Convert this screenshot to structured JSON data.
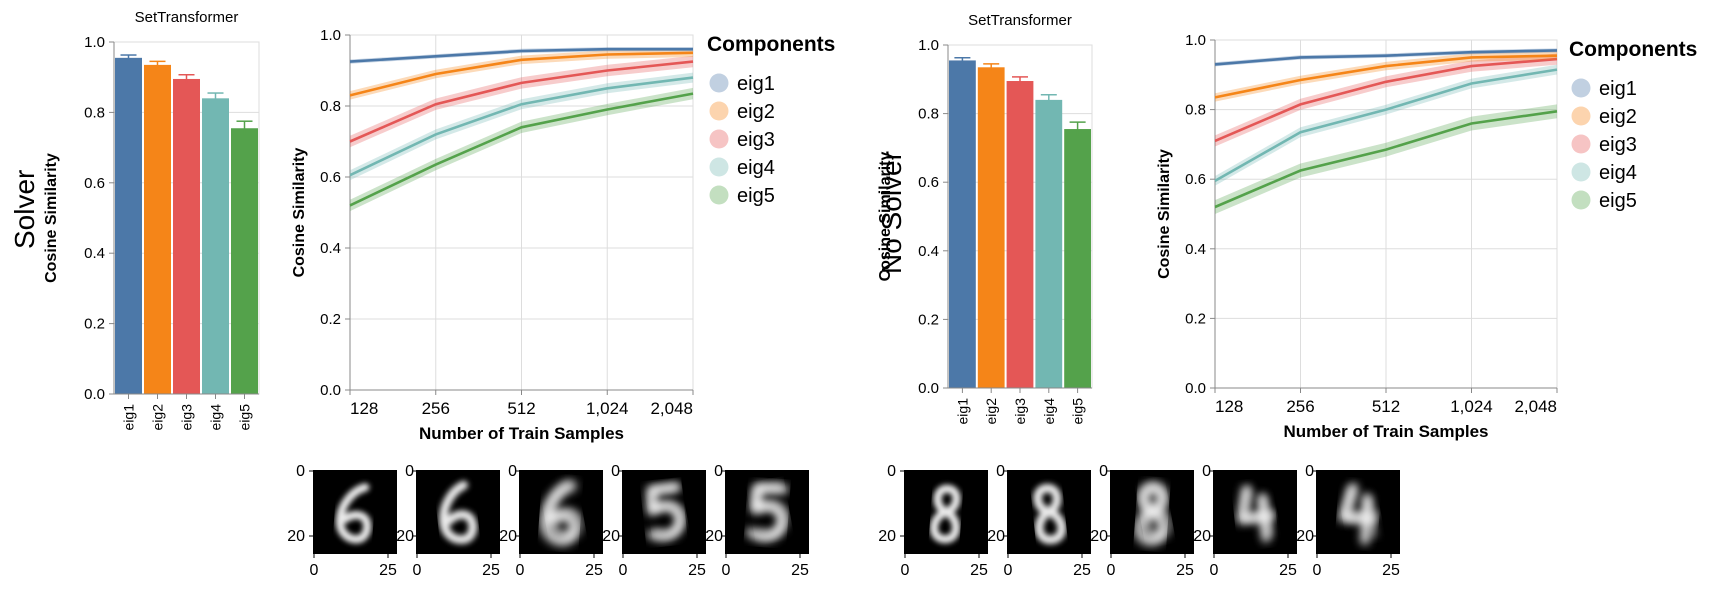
{
  "colors": {
    "eig1": "#4c78a8",
    "eig2": "#f58518",
    "eig3": "#e45756",
    "eig4": "#72b7b2",
    "eig5": "#54a24b",
    "grid": "#dddddd",
    "axis": "#888888"
  },
  "panels": [
    {
      "row_label": "Solver",
      "digits": [
        6,
        6,
        6,
        5,
        5
      ],
      "image_axis": {
        "y_ticks": [
          "0",
          "20"
        ],
        "x_ticks": [
          "0",
          "25"
        ]
      },
      "legend": {
        "title": "Components",
        "items": [
          "eig1",
          "eig2",
          "eig3",
          "eig4",
          "eig5"
        ]
      }
    },
    {
      "row_label": "No Solver",
      "digits": [
        8,
        8,
        8,
        4,
        4
      ],
      "image_axis": {
        "y_ticks": [
          "0",
          "20"
        ],
        "x_ticks": [
          "0",
          "25"
        ]
      },
      "legend": {
        "title": "Components",
        "items": [
          "eig1",
          "eig2",
          "eig3",
          "eig4",
          "eig5"
        ]
      }
    }
  ],
  "chart_data": [
    {
      "type": "bar",
      "title": "SetTransformer",
      "xlabel": "",
      "ylabel": "Cosine Similarity",
      "ylim": [
        0,
        1
      ],
      "y_ticks": [
        "0.0",
        "0.2",
        "0.4",
        "0.6",
        "0.8",
        "1.0"
      ],
      "categories": [
        "eig1",
        "eig2",
        "eig3",
        "eig4",
        "eig5"
      ],
      "values": [
        0.955,
        0.935,
        0.895,
        0.84,
        0.755
      ],
      "errors": [
        0.008,
        0.01,
        0.012,
        0.015,
        0.02
      ]
    },
    {
      "type": "line",
      "title": "",
      "xlabel": "Number of Train Samples",
      "ylabel": "Cosine Similarity",
      "ylim": [
        0,
        1
      ],
      "x": [
        128,
        256,
        512,
        1024,
        2048
      ],
      "x_tick_labels": [
        "128",
        "256",
        "512",
        "1,024",
        "2,048"
      ],
      "y_ticks": [
        "0.0",
        "0.2",
        "0.4",
        "0.6",
        "0.8",
        "1.0"
      ],
      "series": [
        {
          "name": "eig1",
          "values": [
            0.925,
            0.94,
            0.955,
            0.96,
            0.96
          ],
          "band": 0.006
        },
        {
          "name": "eig2",
          "values": [
            0.83,
            0.89,
            0.93,
            0.945,
            0.95
          ],
          "band": 0.012
        },
        {
          "name": "eig3",
          "values": [
            0.7,
            0.805,
            0.865,
            0.9,
            0.925
          ],
          "band": 0.016
        },
        {
          "name": "eig4",
          "values": [
            0.605,
            0.72,
            0.805,
            0.85,
            0.88
          ],
          "band": 0.014
        },
        {
          "name": "eig5",
          "values": [
            0.52,
            0.635,
            0.74,
            0.79,
            0.835
          ],
          "band": 0.016
        }
      ]
    },
    {
      "type": "bar",
      "title": "SetTransformer",
      "xlabel": "",
      "ylabel": "Cosine Similarity",
      "ylim": [
        0,
        1
      ],
      "y_ticks": [
        "0.0",
        "0.2",
        "0.4",
        "0.6",
        "0.8",
        "1.0"
      ],
      "categories": [
        "eig1",
        "eig2",
        "eig3",
        "eig4",
        "eig5"
      ],
      "values": [
        0.955,
        0.935,
        0.895,
        0.84,
        0.755
      ],
      "errors": [
        0.008,
        0.01,
        0.012,
        0.015,
        0.02
      ]
    },
    {
      "type": "line",
      "title": "",
      "xlabel": "Number of Train Samples",
      "ylabel": "Cosine Similarity",
      "ylim": [
        0,
        1
      ],
      "x": [
        128,
        256,
        512,
        1024,
        2048
      ],
      "x_tick_labels": [
        "128",
        "256",
        "512",
        "1,024",
        "2,048"
      ],
      "y_ticks": [
        "0.0",
        "0.2",
        "0.4",
        "0.6",
        "0.8",
        "1.0"
      ],
      "series": [
        {
          "name": "eig1",
          "values": [
            0.93,
            0.95,
            0.955,
            0.965,
            0.97
          ],
          "band": 0.006
        },
        {
          "name": "eig2",
          "values": [
            0.835,
            0.885,
            0.925,
            0.95,
            0.955
          ],
          "band": 0.012
        },
        {
          "name": "eig3",
          "values": [
            0.71,
            0.815,
            0.88,
            0.925,
            0.945
          ],
          "band": 0.016
        },
        {
          "name": "eig4",
          "values": [
            0.595,
            0.735,
            0.8,
            0.875,
            0.915
          ],
          "band": 0.014
        },
        {
          "name": "eig5",
          "values": [
            0.52,
            0.625,
            0.685,
            0.76,
            0.795
          ],
          "band": 0.02
        }
      ]
    }
  ]
}
